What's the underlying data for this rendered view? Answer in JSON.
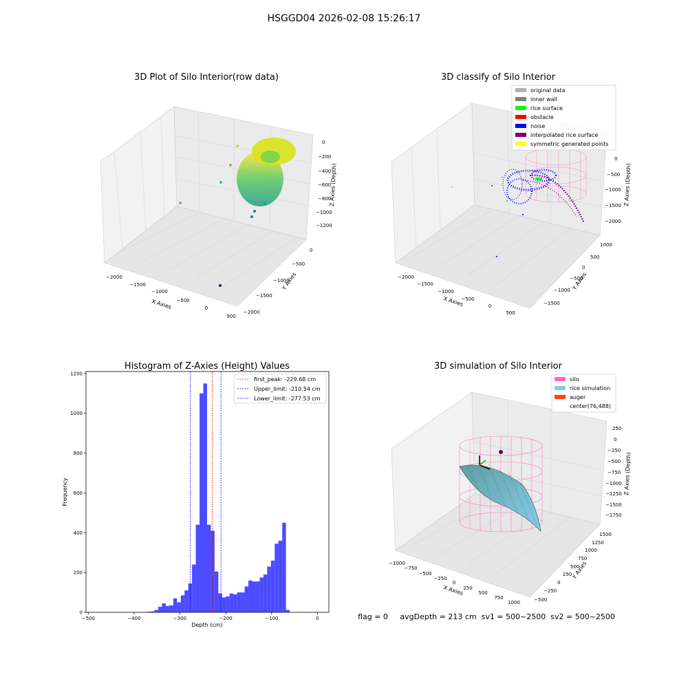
{
  "figure": {
    "suptitle": "HSGGD04 2026-02-08 15:26:17"
  },
  "panels": {
    "raw": {
      "title": "3D Plot of Silo Interior(row data)",
      "xlabel": "X Axies",
      "ylabel": "Y Axies",
      "zlabel": "Z Axies (Depth)",
      "xticks": [
        "−2000",
        "−1500",
        "−1000",
        "−500",
        "0",
        "500"
      ],
      "yticks": [
        "0",
        "−500",
        "−1000",
        "−1500",
        "−2000"
      ],
      "zticks": [
        "0",
        "−200",
        "−400",
        "−600",
        "−800",
        "−1000",
        "−1200"
      ]
    },
    "classify": {
      "title": "3D classify of Silo Interior",
      "xlabel": "X Axies",
      "ylabel": "Y Axies",
      "zlabel": "Z Axies (Depth)",
      "xticks": [
        "−2000",
        "−1500",
        "−1000",
        "−500",
        "0",
        "500"
      ],
      "yticks": [
        "1000",
        "500",
        "0",
        "−500",
        "−1000",
        "−1500"
      ],
      "zticks": [
        "0",
        "−500",
        "−1000",
        "−1500",
        "−2000"
      ],
      "legend": [
        {
          "label": "original data",
          "color": "#b0b0b0"
        },
        {
          "label": "inner wall",
          "color": "#808080"
        },
        {
          "label": "rice surface",
          "color": "#00ff00"
        },
        {
          "label": "obstacle",
          "color": "#ff0000"
        },
        {
          "label": "noise",
          "color": "#0000ff"
        },
        {
          "label": "interpolated rice surface",
          "color": "#800080"
        },
        {
          "label": "symmetric generated points",
          "color": "#ffff00"
        }
      ]
    },
    "simulation": {
      "title": "3D simulation of Silo Interior",
      "xlabel": "X Axies",
      "ylabel": "Y Axies",
      "zlabel": "Z Axies (Depth)",
      "xticks": [
        "−1000",
        "−750",
        "−500",
        "−250",
        "0",
        "250",
        "500",
        "750",
        "1000"
      ],
      "yticks": [
        "1500",
        "1250",
        "1000",
        "750",
        "500",
        "250",
        "0",
        "−250",
        "−500"
      ],
      "zticks": [
        "250",
        "0",
        "−250",
        "−500",
        "−750",
        "−1000",
        "−1250",
        "−1500",
        "−1750"
      ],
      "legend": [
        {
          "label": "silo",
          "color": "#ff69b4"
        },
        {
          "label": "rice simulation",
          "color": "#87ceeb"
        },
        {
          "label": "auger",
          "color": "#ff4500"
        },
        {
          "label": "center(76,488)",
          "color": ""
        }
      ],
      "footer": "flag = 0     avgDepth = 213 cm  sv1 = 500~2500  sv2 = 500~2500"
    }
  },
  "chart_data": {
    "type": "bar",
    "title": "Histogram of Z-Axies (Height) Values",
    "xlabel": "Depth (cm)",
    "ylabel": "Frequency",
    "xlim": [
      -505,
      25
    ],
    "ylim": [
      0,
      1210
    ],
    "xticks": [
      -500,
      -400,
      -300,
      -200,
      -100,
      0
    ],
    "yticks": [
      0,
      200,
      400,
      600,
      800,
      1000,
      1200
    ],
    "bar_color": "#0000ff",
    "bar_alpha": 0.7,
    "bin_width": 8.2,
    "bins_start": [
      -372,
      -363.8,
      -355.6,
      -347.4,
      -339.2,
      -331,
      -322.8,
      -314.6,
      -306.4,
      -298.2,
      -290,
      -281.8,
      -273.6,
      -265.4,
      -257.2,
      -249,
      -240.8,
      -232.6,
      -224.4,
      -216.2,
      -208,
      -199.8,
      -191.6,
      -183.4,
      -175.2,
      -167,
      -158.8,
      -150.6,
      -142.4,
      -134.2,
      -126,
      -117.8,
      -109.6,
      -101.4,
      -93.2,
      -85,
      -76.8,
      -68.6,
      -60.4,
      -52.2,
      -44,
      -35.8,
      -27.6,
      -19.4,
      -11.2,
      -3
    ],
    "values": [
      3,
      5,
      12,
      28,
      45,
      32,
      35,
      70,
      50,
      85,
      110,
      145,
      240,
      440,
      1100,
      1150,
      440,
      410,
      205,
      95,
      75,
      80,
      95,
      90,
      100,
      100,
      130,
      160,
      155,
      155,
      175,
      190,
      230,
      260,
      345,
      360,
      450,
      12,
      0,
      0,
      0,
      0,
      0,
      0,
      0,
      0
    ],
    "vlines": [
      {
        "label": "first_peak: -229.68 cm",
        "x": -229.68,
        "color": "#ff0000"
      },
      {
        "label": "Upper_limit: -210.54 cm",
        "x": -210.54,
        "color": "#0000ff"
      },
      {
        "label": "Lower_limit: -277.53 cm",
        "x": -277.53,
        "color": "#0000ff"
      }
    ],
    "legend": "top-right",
    "grid": false
  }
}
